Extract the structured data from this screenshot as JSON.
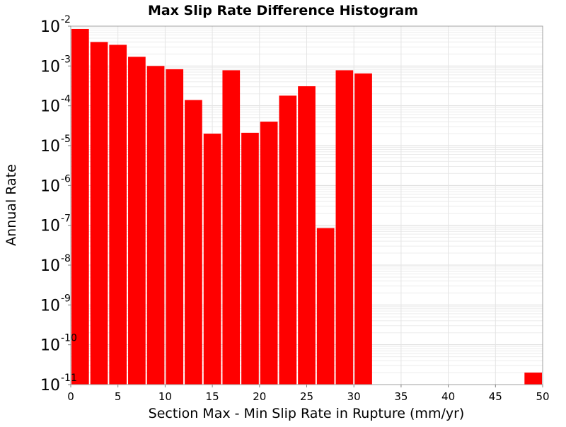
{
  "chart_data": {
    "type": "bar",
    "title": "Max Slip Rate Difference Histogram",
    "xlabel": "Section Max - Min Slip Rate in Rupture (mm/yr)",
    "ylabel": "Annual Rate",
    "x_scale": "linear",
    "y_scale": "log",
    "xlim": [
      0,
      50
    ],
    "ylim": [
      1e-11,
      0.01
    ],
    "x_ticks": [
      0,
      5,
      10,
      15,
      20,
      25,
      30,
      35,
      40,
      45,
      50
    ],
    "y_tick_exponents": [
      -2,
      -3,
      -4,
      -5,
      -6,
      -7,
      -8,
      -9,
      -10,
      -11
    ],
    "y_tick_base": "10",
    "grid": true,
    "bar_color": "#ff0000",
    "bar_edge_color": "#ffffff",
    "bins": [
      {
        "x0": 0,
        "x1": 2,
        "value": 0.0085
      },
      {
        "x0": 2,
        "x1": 4,
        "value": 0.004
      },
      {
        "x0": 4,
        "x1": 6,
        "value": 0.0034
      },
      {
        "x0": 6,
        "x1": 8,
        "value": 0.0017
      },
      {
        "x0": 8,
        "x1": 10,
        "value": 0.001
      },
      {
        "x0": 10,
        "x1": 12,
        "value": 0.00083
      },
      {
        "x0": 12,
        "x1": 14,
        "value": 0.00014
      },
      {
        "x0": 14,
        "x1": 16,
        "value": 2e-05
      },
      {
        "x0": 16,
        "x1": 18,
        "value": 0.00078
      },
      {
        "x0": 18,
        "x1": 20,
        "value": 2.1e-05
      },
      {
        "x0": 20,
        "x1": 22,
        "value": 4e-05
      },
      {
        "x0": 22,
        "x1": 24,
        "value": 0.00018
      },
      {
        "x0": 24,
        "x1": 26,
        "value": 0.00031
      },
      {
        "x0": 26,
        "x1": 28,
        "value": 8.5e-08
      },
      {
        "x0": 28,
        "x1": 30,
        "value": 0.00078
      },
      {
        "x0": 30,
        "x1": 32,
        "value": 0.00065
      },
      {
        "x0": 48,
        "x1": 50,
        "value": 2e-11
      }
    ]
  }
}
